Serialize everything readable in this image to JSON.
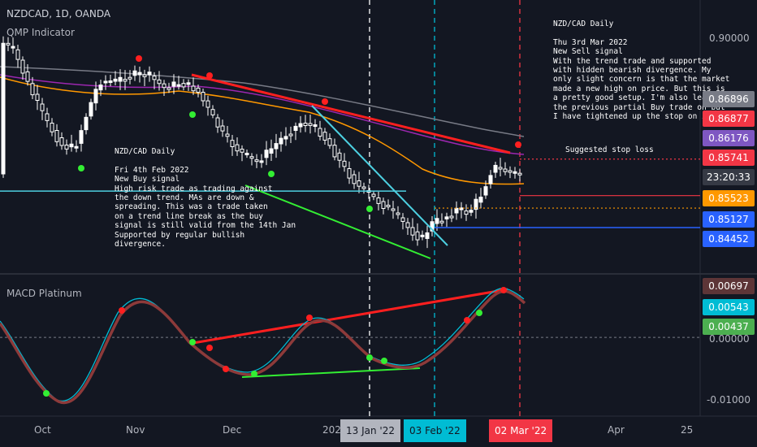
{
  "header": {
    "symbol": "NZDCAD, 1D, OANDA",
    "indicator": "QMP Indicator"
  },
  "macd_label": "MACD Platinum",
  "annotations": {
    "buy_note": "NZD/CAD Daily\n\nFri 4th Feb 2022\nNew Buy signal\nHigh risk trade as trading against\nthe down trend. MAs are down &\nspreading. This was a trade taken\non a trend line break as the buy\nsignal is still valid from the 14th Jan\nSupported by regular bullish\ndivergence.",
    "sell_note": "NZD/CAD Daily\n\nThu 3rd Mar 2022\nNew Sell signal\nWith the trend trade and supported\nwith hidden bearish divergence. My\nonly slight concern is that the market\nmade a new high on price. But this is\na pretty good setup. I'm also leaving\nthe previous partial Buy trade on but\nI have tightened up the stop on it.",
    "stop_label": "Suggested stop loss"
  },
  "price_axis": {
    "ticks": [
      "0.90000"
    ]
  },
  "macd_axis": {
    "ticks": [
      "0.00000",
      "-0.01000"
    ]
  },
  "price_tags": [
    {
      "label": "0.86896",
      "value": 0.86896,
      "color": "#787b86"
    },
    {
      "label": "0.86877",
      "value": 0.86877,
      "color": "#f23645"
    },
    {
      "label": "0.86176",
      "value": 0.86176,
      "color": "#7e57c2"
    },
    {
      "label": "0.85741",
      "value": 0.85741,
      "color": "#f23645"
    },
    {
      "label": "23:20:33",
      "value": 0.8563,
      "color": "#363a45"
    },
    {
      "label": "0.85523",
      "value": 0.85523,
      "color": "#ff9800"
    },
    {
      "label": "0.85127",
      "value": 0.85127,
      "color": "#2962ff"
    },
    {
      "label": "0.84452",
      "value": 0.84452,
      "color": "#2962ff"
    }
  ],
  "macd_tags": [
    {
      "label": "0.00697",
      "value": 0.00697,
      "color": "#5d3537"
    },
    {
      "label": "0.00543",
      "value": 0.00543,
      "color": "#00bcd4"
    },
    {
      "label": "0.00437",
      "value": 0.00437,
      "color": "#4caf50"
    }
  ],
  "time_axis": {
    "labels": [
      "Oct",
      "Nov",
      "Dec",
      "202",
      "Apr",
      "25"
    ],
    "date_tags": [
      {
        "label": "13 Jan '22",
        "color": "#b2b5be",
        "text_color": "#131722"
      },
      {
        "label": "03 Feb '22",
        "color": "#00bcd4",
        "text_color": "#131722"
      },
      {
        "label": "02 Mar '22",
        "color": "#f23645",
        "text_color": "#ffffff"
      }
    ]
  },
  "chart_data": {
    "type": "candlestick",
    "price_range": [
      0.838,
      0.904
    ],
    "macd_range": [
      -0.0125,
      0.0095
    ],
    "levels": {
      "buy_entry": 0.85741,
      "stop_loss": 0.85523,
      "support": 0.85127,
      "sell_entry": 0.8563,
      "buy_stop": 0.86877
    },
    "signal_lines": [
      "13 Jan '22",
      "03 Feb '22",
      "02 Mar '22"
    ],
    "grid": false
  }
}
